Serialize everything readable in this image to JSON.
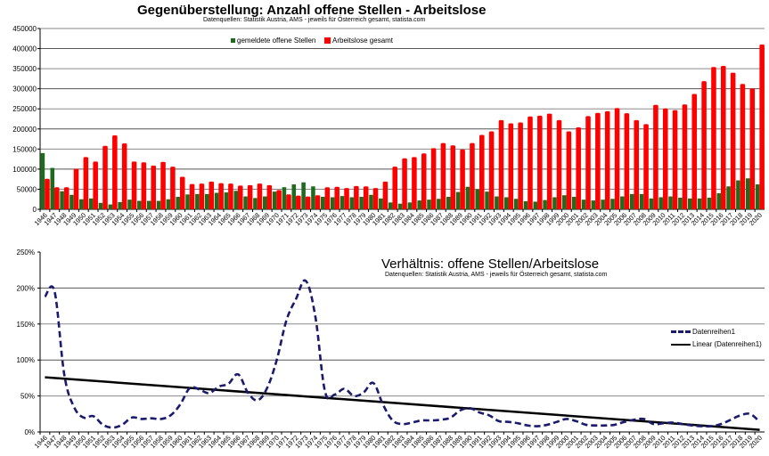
{
  "top_chart": {
    "title": "Gegenüberstellung: Anzahl offene Stellen - Arbeitslose",
    "subtitle": "Datenquellen: Statistik Austria, AMS - jeweils für Österreich gesamt, statista.com",
    "legend": [
      {
        "label": "gemeldete offene Stellen",
        "color": "#1e6b1e"
      },
      {
        "label": "Arbeitslose gesamt",
        "color": "#ff0000"
      }
    ],
    "y_ticks": [
      "0",
      "50000",
      "100000",
      "150000",
      "200000",
      "250000",
      "300000",
      "350000",
      "400000",
      "450000"
    ]
  },
  "bottom_chart": {
    "title": "Verhältnis: offene Stellen/Arbeitslose",
    "subtitle": "Datenquellen: Statistik Austria, AMS - jeweils für Österreich gesamt, statista.com",
    "legend": [
      {
        "label": "Datenreihen1",
        "color": "#1a1a6e",
        "style": "dashed"
      },
      {
        "label": "Linear (Datenreihen1)",
        "color": "#000000",
        "style": "solid"
      }
    ],
    "y_ticks": [
      "0%",
      "50%",
      "100%",
      "150%",
      "200%",
      "250%"
    ]
  },
  "chart_data": [
    {
      "type": "bar",
      "title": "Gegenüberstellung: Anzahl offene Stellen - Arbeitslose",
      "subtitle": "Datenquellen: Statistik Austria, AMS - jeweils für Österreich gesamt, statista.com",
      "xlabel": "",
      "ylabel": "",
      "ylim": [
        0,
        450000
      ],
      "grid": true,
      "legend_position": "top-right",
      "categories": [
        "1946",
        "1947",
        "1948",
        "1949",
        "1950",
        "1951",
        "1952",
        "1953",
        "1954",
        "1955",
        "1956",
        "1957",
        "1958",
        "1959",
        "1960",
        "1961",
        "1962",
        "1963",
        "1964",
        "1965",
        "1966",
        "1967",
        "1968",
        "1969",
        "1970",
        "1971",
        "1972",
        "1973",
        "1974",
        "1975",
        "1976",
        "1977",
        "1978",
        "1979",
        "1980",
        "1981",
        "1982",
        "1983",
        "1984",
        "1985",
        "1986",
        "1987",
        "1988",
        "1989",
        "1990",
        "1991",
        "1992",
        "1993",
        "1994",
        "1995",
        "1996",
        "1997",
        "1998",
        "1999",
        "2000",
        "2001",
        "2002",
        "2003",
        "2004",
        "2005",
        "2006",
        "2007",
        "2008",
        "2009",
        "2010",
        "2011",
        "2012",
        "2013",
        "2014",
        "2015",
        "2016",
        "2017",
        "2018",
        "2019",
        "2020"
      ],
      "series": [
        {
          "name": "gemeldete offene Stellen",
          "color": "#1e6b1e",
          "values": [
            140000,
            103000,
            45000,
            36000,
            25000,
            27000,
            16000,
            12000,
            18000,
            24000,
            21000,
            21000,
            21000,
            25000,
            31000,
            37000,
            38000,
            38000,
            41000,
            42000,
            46000,
            32000,
            28000,
            32000,
            44000,
            55000,
            62000,
            67000,
            57000,
            31000,
            30000,
            33000,
            30000,
            31000,
            36000,
            27000,
            17000,
            14000,
            17000,
            22000,
            24000,
            26000,
            31000,
            43000,
            56000,
            50000,
            44000,
            32000,
            30000,
            26000,
            20000,
            19000,
            23000,
            30000,
            35000,
            31000,
            24000,
            22000,
            24000,
            26000,
            32000,
            38000,
            38000,
            27000,
            30000,
            32000,
            29000,
            27000,
            27000,
            29000,
            40000,
            57000,
            72000,
            77000,
            62000
          ]
        },
        {
          "name": "Arbeitslose gesamt",
          "color": "#ff0000",
          "values": [
            76000,
            55000,
            55000,
            101000,
            130000,
            119000,
            158000,
            184000,
            164000,
            119000,
            117000,
            109000,
            118000,
            106000,
            81000,
            63000,
            64000,
            69000,
            65000,
            64000,
            59000,
            60000,
            64000,
            60000,
            48000,
            37000,
            34000,
            32000,
            35000,
            55000,
            56000,
            53000,
            58000,
            57000,
            53000,
            69000,
            106000,
            127000,
            130000,
            139000,
            152000,
            165000,
            159000,
            149000,
            165000,
            185000,
            194000,
            222000,
            214000,
            216000,
            231000,
            233000,
            238000,
            222000,
            194000,
            204000,
            232000,
            240000,
            244000,
            252000,
            239000,
            222000,
            212000,
            260000,
            251000,
            247000,
            261000,
            287000,
            319000,
            354000,
            357000,
            340000,
            312000,
            301000,
            410000
          ]
        }
      ]
    },
    {
      "type": "line",
      "title": "Verhältnis: offene Stellen/Arbeitslose",
      "subtitle": "Datenquellen: Statistik Austria, AMS - jeweils für Österreich gesamt, statista.com",
      "xlabel": "",
      "ylabel": "",
      "ylim": [
        0,
        250
      ],
      "y_unit": "%",
      "grid": true,
      "legend_position": "right",
      "categories": [
        "1946",
        "1947",
        "1948",
        "1949",
        "1950",
        "1951",
        "1952",
        "1953",
        "1954",
        "1955",
        "1956",
        "1957",
        "1958",
        "1959",
        "1960",
        "1961",
        "1962",
        "1963",
        "1964",
        "1965",
        "1966",
        "1967",
        "1968",
        "1969",
        "1970",
        "1971",
        "1972",
        "1973",
        "1974",
        "1975",
        "1976",
        "1977",
        "1978",
        "1979",
        "1980",
        "1981",
        "1982",
        "1983",
        "1984",
        "1985",
        "1986",
        "1987",
        "1988",
        "1989",
        "1990",
        "1991",
        "1992",
        "1993",
        "1994",
        "1995",
        "1996",
        "1997",
        "1998",
        "1999",
        "2000",
        "2001",
        "2002",
        "2003",
        "2004",
        "2005",
        "2006",
        "2007",
        "2008",
        "2009",
        "2010",
        "2011",
        "2012",
        "2013",
        "2014",
        "2015",
        "2016",
        "2017",
        "2018",
        "2019",
        "2020"
      ],
      "series": [
        {
          "name": "Datenreihen1",
          "style": "dashed",
          "color": "#1a1a6e",
          "values": [
            188,
            195,
            80,
            35,
            20,
            22,
            10,
            6,
            10,
            20,
            18,
            19,
            18,
            23,
            38,
            61,
            59,
            54,
            63,
            67,
            80,
            55,
            44,
            61,
            100,
            155,
            185,
            210,
            160,
            56,
            52,
            60,
            50,
            55,
            68,
            38,
            16,
            11,
            13,
            16,
            16,
            17,
            20,
            30,
            33,
            27,
            23,
            15,
            14,
            12,
            9,
            8,
            10,
            14,
            18,
            15,
            10,
            9,
            9,
            10,
            14,
            17,
            18,
            11,
            12,
            13,
            11,
            9,
            8,
            8,
            11,
            17,
            23,
            25,
            14
          ]
        },
        {
          "name": "Linear (Datenreihen1)",
          "style": "solid",
          "color": "#000000",
          "values_endpoints": [
            76,
            3
          ]
        }
      ]
    }
  ]
}
